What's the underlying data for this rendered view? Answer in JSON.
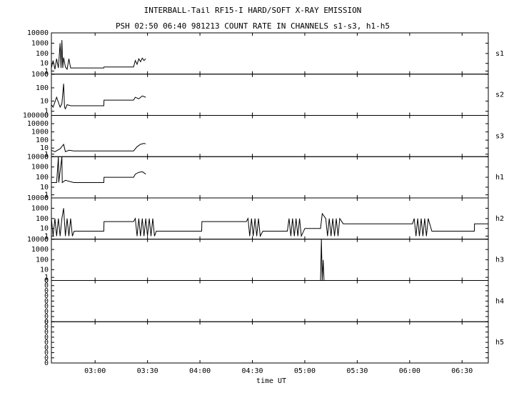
{
  "title": "INTERBALL-Tail RF15-I HARD/SOFT X-RAY EMISSION",
  "subtitle": "PSH 02:50 06:40 981213  COUNT RATE IN CHANNELS s1-s3, h1-h5",
  "x_axis": {
    "label": "time UT",
    "xlim": [
      155,
      405
    ],
    "xticks": [
      {
        "value": 180,
        "label": "03:00"
      },
      {
        "value": 210,
        "label": "03:30"
      },
      {
        "value": 240,
        "label": "04:00"
      },
      {
        "value": 270,
        "label": "04:30"
      },
      {
        "value": 300,
        "label": "05:00"
      },
      {
        "value": 330,
        "label": "05:30"
      },
      {
        "value": 360,
        "label": "06:00"
      },
      {
        "value": 390,
        "label": "06:30"
      }
    ]
  },
  "chart_data": [
    {
      "type": "line",
      "ylabel": "s1",
      "yscale": "log1p",
      "color": "#000000",
      "ylim": [
        0,
        10000
      ],
      "yticks": [
        0,
        1,
        10,
        100,
        1000,
        10000
      ],
      "x": [
        155,
        156,
        157,
        158,
        159,
        160,
        160.5,
        161,
        161.5,
        162,
        163,
        164,
        165,
        166,
        167.8,
        185,
        185.1,
        202,
        203,
        204,
        205,
        206,
        207,
        208,
        209
      ],
      "values": [
        3,
        20,
        2,
        30,
        3,
        1000,
        3,
        2000,
        3,
        40,
        4,
        2,
        30,
        3,
        3,
        3,
        4,
        4,
        20,
        8,
        30,
        15,
        35,
        20,
        30
      ]
    },
    {
      "type": "line",
      "ylabel": "s2",
      "yscale": "log1p",
      "color": "#000000",
      "ylim": [
        0,
        1000
      ],
      "yticks": [
        0,
        1,
        10,
        100,
        1000
      ],
      "x": [
        155,
        156,
        158,
        160,
        161,
        162,
        162.5,
        163,
        164,
        166,
        167.8,
        185,
        185.1,
        202,
        203,
        205,
        207,
        209
      ],
      "values": [
        5,
        3,
        20,
        3,
        6,
        200,
        3,
        2,
        5,
        4,
        4,
        4,
        12,
        12,
        20,
        15,
        25,
        20
      ]
    },
    {
      "type": "line",
      "ylabel": "s3",
      "yscale": "log1p",
      "color": "#000000",
      "ylim": [
        0,
        100000
      ],
      "yticks": [
        0,
        1,
        10,
        100,
        1000,
        10000,
        100000
      ],
      "x": [
        155,
        157,
        160,
        162,
        163,
        165,
        167.8,
        185,
        202,
        204,
        206,
        208,
        209
      ],
      "values": [
        5,
        3,
        8,
        30,
        3,
        5,
        4,
        4,
        4,
        15,
        30,
        40,
        35
      ]
    },
    {
      "type": "line",
      "ylabel": "h1",
      "yscale": "log1p",
      "color": "#000000",
      "ylim": [
        0,
        10000
      ],
      "yticks": [
        0,
        1,
        10,
        100,
        1000,
        10000
      ],
      "x": [
        155,
        158,
        159,
        159.2,
        161,
        161.2,
        163,
        167.8,
        185,
        185.1,
        202,
        203,
        205,
        207,
        209
      ],
      "values": [
        30,
        30,
        10000,
        30,
        10000,
        30,
        50,
        30,
        30,
        100,
        100,
        200,
        300,
        350,
        200
      ]
    },
    {
      "type": "line",
      "ylabel": "h2",
      "yscale": "log1p",
      "color": "#000000",
      "ylim": [
        0,
        10000
      ],
      "yticks": [
        0,
        1,
        10,
        100,
        1000,
        10000
      ],
      "x": [
        155,
        156,
        157,
        158,
        159,
        160,
        161,
        162,
        163,
        164,
        165,
        166,
        167,
        168,
        185,
        185.1,
        202,
        203,
        204,
        205,
        206,
        207,
        208,
        209,
        210,
        211,
        212,
        213,
        214,
        215,
        241,
        241.1,
        266.5,
        267.5,
        268.5,
        269.5,
        270.5,
        271.5,
        272.5,
        273.5,
        274.5,
        276,
        283,
        284,
        290,
        291,
        292,
        293,
        294,
        295,
        296,
        297,
        298,
        300,
        309,
        310,
        312,
        313,
        314,
        315,
        316,
        317,
        318,
        319,
        320,
        322,
        361.6,
        362.6,
        363.6,
        364.6,
        365.6,
        366.6,
        367.6,
        368.6,
        369.6,
        370.6,
        372.7,
        397,
        397.1,
        405
      ],
      "values": [
        100,
        1,
        100,
        1,
        100,
        1,
        100,
        1000,
        1,
        100,
        1,
        100,
        1,
        5,
        5,
        50,
        50,
        100,
        1,
        100,
        1,
        100,
        1,
        100,
        1,
        100,
        1,
        100,
        1,
        5,
        5,
        50,
        50,
        100,
        1,
        100,
        1,
        100,
        1,
        100,
        1,
        5,
        5,
        5,
        5,
        100,
        1,
        100,
        1,
        100,
        1,
        100,
        1,
        10,
        10,
        300,
        100,
        1,
        100,
        1,
        100,
        1,
        100,
        1,
        100,
        30,
        30,
        100,
        1,
        100,
        1,
        100,
        1,
        100,
        1,
        100,
        5,
        5,
        30,
        30
      ]
    },
    {
      "type": "line",
      "ylabel": "h3",
      "yscale": "log1p",
      "color": "#000000",
      "ylim": [
        0,
        10000
      ],
      "yticks": [
        0,
        1,
        10,
        100,
        1000,
        10000
      ],
      "x": [
        155,
        309,
        309.5,
        310,
        310.5,
        311,
        405
      ],
      "values": [
        0,
        0,
        10000,
        0,
        100,
        0,
        0
      ]
    },
    {
      "type": "line",
      "ylabel": "h4",
      "yscale": "linear",
      "ylim": [
        0,
        8
      ],
      "yticks": [
        {
          "value": 0,
          "label": "0"
        },
        {
          "value": 1,
          "label": "0"
        },
        {
          "value": 2,
          "label": "0"
        },
        {
          "value": 3,
          "label": "0"
        },
        {
          "value": 4,
          "label": "0"
        },
        {
          "value": 5,
          "label": "0"
        },
        {
          "value": 6,
          "label": "0"
        },
        {
          "value": 7,
          "label": "0"
        },
        {
          "value": 8,
          "label": "0"
        }
      ]
    },
    {
      "type": "line",
      "ylabel": "h5",
      "yscale": "linear",
      "ylim": [
        0,
        8
      ],
      "yticks": [
        {
          "value": 0,
          "label": "0"
        },
        {
          "value": 1,
          "label": "0"
        },
        {
          "value": 2,
          "label": "0"
        },
        {
          "value": 3,
          "label": "0"
        },
        {
          "value": 4,
          "label": "0"
        },
        {
          "value": 5,
          "label": "0"
        },
        {
          "value": 6,
          "label": "0"
        },
        {
          "value": 7,
          "label": "0"
        },
        {
          "value": 8,
          "label": "0"
        }
      ]
    }
  ]
}
